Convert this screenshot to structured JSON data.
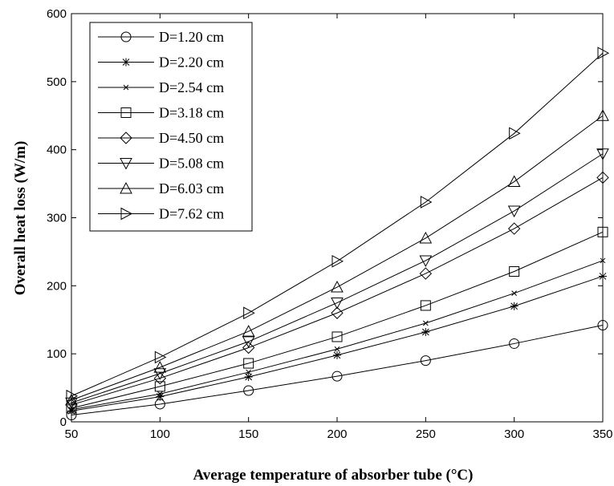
{
  "chart_data": {
    "type": "line",
    "title": "",
    "xlabel": "Average temperature of absorber tube (°C)",
    "ylabel": "Overall heat loss (W/m)",
    "xlim": [
      50,
      350
    ],
    "ylim": [
      0,
      600
    ],
    "x_ticks": [
      50,
      100,
      150,
      200,
      250,
      300,
      350
    ],
    "y_ticks": [
      0,
      100,
      200,
      300,
      400,
      500,
      600
    ],
    "grid": false,
    "legend_position": "top-left",
    "x": [
      50,
      100,
      150,
      200,
      250,
      300,
      350
    ],
    "series": [
      {
        "name": "D=1.20 cm",
        "marker": "circle",
        "values": [
          10,
          26,
          46,
          67,
          90,
          115,
          142
        ]
      },
      {
        "name": "D=2.20 cm",
        "marker": "star",
        "values": [
          16,
          37,
          66,
          98,
          132,
          170,
          214
        ]
      },
      {
        "name": "D=2.54 cm",
        "marker": "x",
        "values": [
          18,
          41,
          73,
          107,
          145,
          189,
          237
        ]
      },
      {
        "name": "D=3.18 cm",
        "marker": "square",
        "values": [
          20,
          52,
          86,
          125,
          171,
          221,
          279
        ]
      },
      {
        "name": "D=4.50 cm",
        "marker": "diamond",
        "values": [
          25,
          64,
          109,
          160,
          218,
          284,
          359
        ]
      },
      {
        "name": "D=5.08 cm",
        "marker": "triangle-down",
        "values": [
          28,
          71,
          118,
          175,
          237,
          310,
          394
        ]
      },
      {
        "name": "D=6.03 cm",
        "marker": "triangle-up",
        "values": [
          32,
          80,
          133,
          198,
          270,
          353,
          450
        ]
      },
      {
        "name": "D=7.62 cm",
        "marker": "triangle-right",
        "values": [
          38,
          95,
          160,
          236,
          323,
          424,
          542
        ]
      }
    ]
  }
}
